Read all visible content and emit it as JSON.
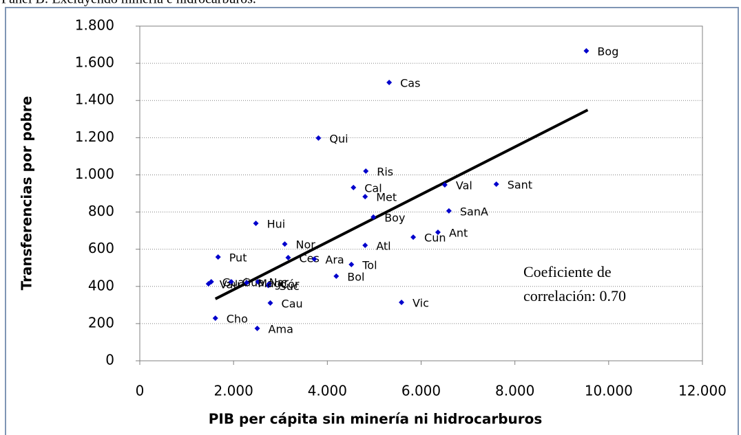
{
  "chart_data": {
    "type": "scatter",
    "title": "Panel B: Excluyendo minería e hidrocarburos.",
    "xlabel": "PIB per cápita sin minería ni hidrocarburos",
    "ylabel": "Transferencias por pobre",
    "annotation": [
      "Coeficiente de",
      "correlación: 0.70"
    ],
    "color": "#0000cc",
    "grid": true,
    "xlim": [
      0,
      12000
    ],
    "ylim": [
      0,
      1800
    ],
    "xticks": [
      0,
      {
        "value": 2000,
        "label": "2.000"
      },
      {
        "value": 4000,
        "label": "4.000"
      },
      {
        "value": 6000,
        "label": "6.000"
      },
      {
        "value": 8000,
        "label": "8.000"
      },
      {
        "value": 10000,
        "label": "10.000"
      },
      {
        "value": 12000,
        "label": "12.000"
      }
    ],
    "yticks": [
      0,
      200,
      400,
      600,
      800,
      {
        "value": 1000,
        "label": "1.000"
      },
      {
        "value": 1200,
        "label": "1.200"
      },
      {
        "value": 1400,
        "label": "1.400"
      },
      {
        "value": 1600,
        "label": "1.600"
      },
      {
        "value": 1800,
        "label": "1.800"
      }
    ],
    "labels": [
      "Bog",
      "Cas",
      "Qui",
      "Ris",
      "Cal",
      "Met",
      "Val",
      "Sant",
      "SanA",
      "Boy",
      "Hui",
      "Ant",
      "Cun",
      "Atl",
      "Nor",
      "Put",
      "Ces",
      "Tol",
      "Ara",
      "Bol",
      "Vic",
      "Cau",
      "Cho",
      "Ama",
      "Vau",
      "Guai",
      "Gua",
      "Nar",
      "Cór",
      "Suc",
      "Mag"
    ],
    "x": [
      9524,
      5319,
      3810,
      4821,
      4557,
      4806,
      6505,
      7604,
      6593,
      4982,
      2476,
      6359,
      5832,
      4806,
      3092,
      1670,
      3165,
      4513,
      3722,
      4190,
      5582,
      2784,
      1612,
      2505,
      1465,
      1524,
      1949,
      2520,
      2760,
      2740,
      2280
    ],
    "y": [
      1667,
      1497,
      1198,
      1020,
      932,
      883,
      946,
      950,
      806,
      773,
      739,
      691,
      665,
      621,
      628,
      558,
      555,
      518,
      547,
      455,
      314,
      311,
      229,
      174,
      414,
      425,
      425,
      425,
      415,
      405,
      420
    ],
    "trendline": {
      "x": [
        1612,
        9553
      ],
      "y": [
        333,
        1349
      ]
    }
  }
}
